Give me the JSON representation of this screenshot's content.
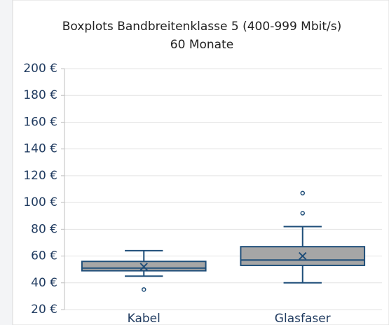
{
  "chart_data": {
    "type": "box",
    "title": "Boxplots Bandbreitenklasse 5 (400-999 Mbit/s)",
    "subtitle": "60 Monate",
    "categories": [
      "Kabel",
      "Glasfaser"
    ],
    "boxes": [
      {
        "min": 45,
        "q1": 49,
        "median": 51,
        "q3": 56,
        "max": 64,
        "mean": 52,
        "outliers": [
          35
        ]
      },
      {
        "min": 40,
        "q1": 53,
        "median": 57,
        "q3": 67,
        "max": 82,
        "mean": 60,
        "outliers": [
          92,
          107
        ]
      }
    ],
    "color": "#a6a6a6",
    "line_color": "#1f4e79",
    "ylim": [
      20,
      200
    ],
    "yticks": [
      {
        "value": 20,
        "label": "20 €"
      },
      {
        "value": 40,
        "label": "40 €"
      },
      {
        "value": 60,
        "label": "60 €"
      },
      {
        "value": 80,
        "label": "80 €"
      },
      {
        "value": 100,
        "label": "100 €"
      },
      {
        "value": 120,
        "label": "120 €"
      },
      {
        "value": 140,
        "label": "140 €"
      },
      {
        "value": 160,
        "label": "160 €"
      },
      {
        "value": 180,
        "label": "180 €"
      },
      {
        "value": 200,
        "label": "200 €"
      }
    ],
    "grid": true
  }
}
